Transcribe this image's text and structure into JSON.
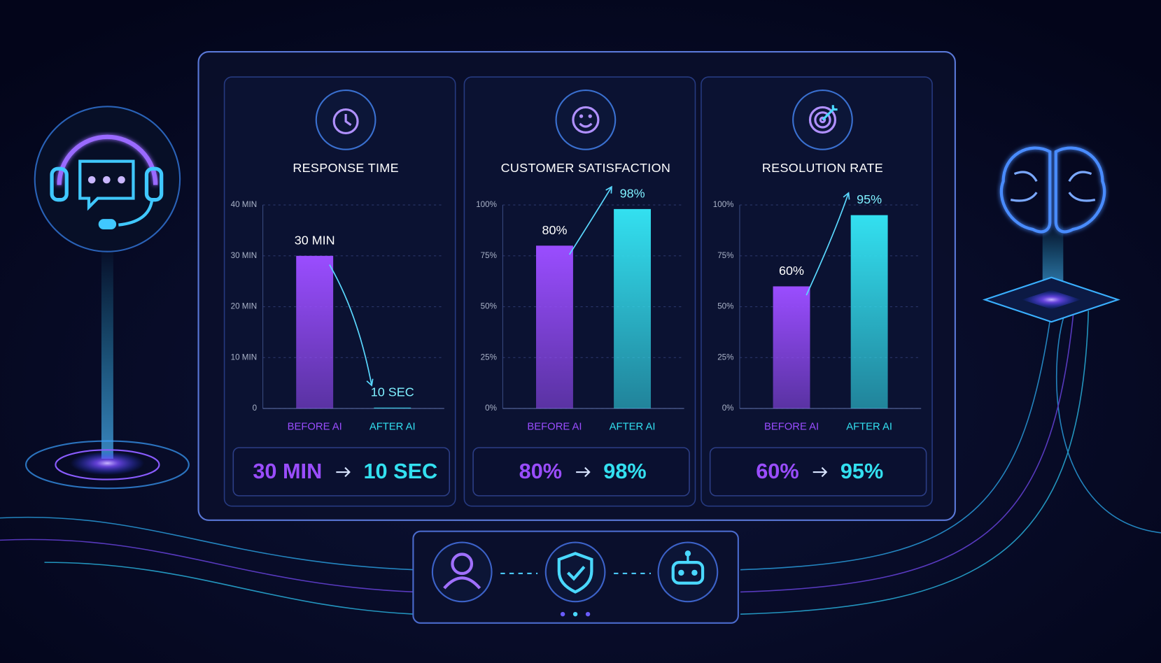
{
  "chart_data": [
    {
      "type": "bar",
      "title": "RESPONSE TIME",
      "categories": [
        "BEFORE AI",
        "AFTER AI"
      ],
      "values": [
        30,
        0.1667
      ],
      "value_labels": [
        "30 MIN",
        "10 SEC"
      ],
      "colors": [
        "#9a4dff",
        "#33e0f0"
      ],
      "ylim": [
        0,
        40
      ],
      "yticks": [
        0,
        {
          "value": 10,
          "label": "10 MIN"
        },
        {
          "value": 20,
          "label": "20 MIN"
        },
        {
          "value": 30,
          "label": "30 MIN"
        },
        {
          "value": 40,
          "label": "40 MIN"
        }
      ],
      "grid": true
    },
    {
      "type": "bar",
      "title": "CUSTOMER SATISFACTION",
      "categories": [
        "BEFORE AI",
        "AFTER AI"
      ],
      "values": [
        80,
        98
      ],
      "value_labels": [
        "80%",
        "98%"
      ],
      "colors": [
        "#9a4dff",
        "#33e0f0"
      ],
      "ylim": [
        0,
        100
      ],
      "yticks": [
        {
          "value": 0,
          "label": "0%"
        },
        {
          "value": 25,
          "label": "25%"
        },
        {
          "value": 50,
          "label": "50%"
        },
        {
          "value": 75,
          "label": "75%"
        },
        {
          "value": 100,
          "label": "100%"
        }
      ],
      "grid": true
    },
    {
      "type": "bar",
      "title": "RESOLUTION RATE",
      "categories": [
        "BEFORE AI",
        "AFTER AI"
      ],
      "values": [
        60,
        95
      ],
      "value_labels": [
        "60%",
        "95%"
      ],
      "colors": [
        "#9a4dff",
        "#33e0f0"
      ],
      "ylim": [
        0,
        100
      ],
      "yticks": [
        {
          "value": 0,
          "label": "0%"
        },
        {
          "value": 25,
          "label": "25%"
        },
        {
          "value": 50,
          "label": "50%"
        },
        {
          "value": 75,
          "label": "75%"
        },
        {
          "value": 100,
          "label": "100%"
        }
      ],
      "grid": true
    }
  ]
}
